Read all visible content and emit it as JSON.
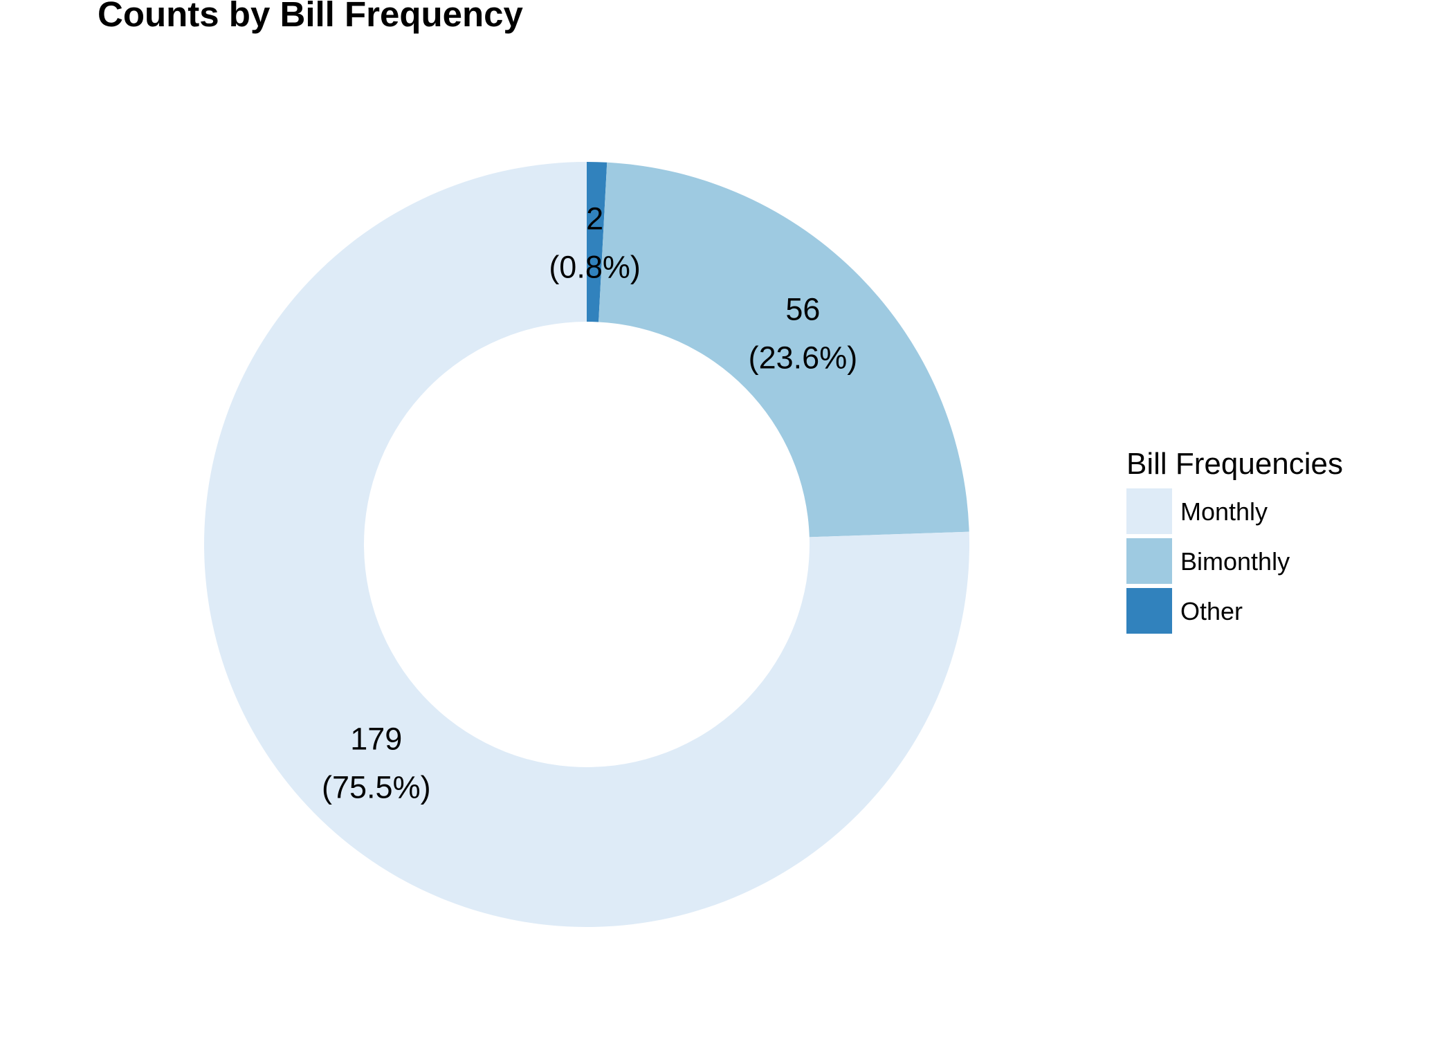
{
  "chart_data": {
    "type": "pie",
    "title": "Counts by Bill Frequency",
    "legend_title": "Bill Frequencies",
    "legend_position": "right",
    "donut": true,
    "slices": [
      {
        "name": "Monthly",
        "value": 179,
        "percent_label": "(75.5%)",
        "count_label": "179",
        "color": "#deebf7"
      },
      {
        "name": "Bimonthly",
        "value": 56,
        "percent_label": "(23.6%)",
        "count_label": "56",
        "color": "#9ecae1"
      },
      {
        "name": "Other",
        "value": 2,
        "percent_label": "(0.8%)",
        "count_label": "2",
        "color": "#3182bd"
      }
    ]
  }
}
